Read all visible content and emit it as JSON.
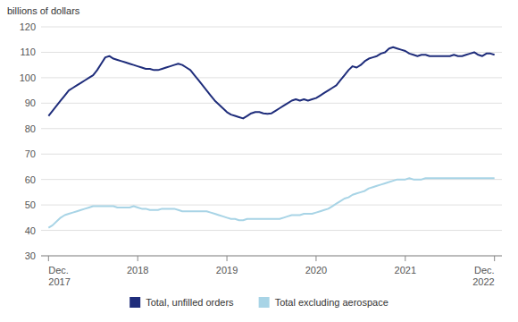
{
  "chart_data": {
    "type": "line",
    "ylabel": "billions of dollars",
    "categories": [
      "Dec.\n2017",
      null,
      null,
      null,
      null,
      null,
      null,
      null,
      null,
      null,
      null,
      null,
      null,
      null,
      null,
      null,
      null,
      null,
      null,
      null,
      null,
      null,
      "2018",
      null,
      null,
      null,
      null,
      null,
      null,
      null,
      null,
      null,
      null,
      null,
      null,
      null,
      null,
      null,
      null,
      null,
      null,
      null,
      null,
      null,
      "2019",
      null,
      null,
      null,
      null,
      null,
      null,
      null,
      null,
      null,
      null,
      null,
      null,
      null,
      null,
      null,
      null,
      null,
      null,
      null,
      null,
      null,
      "2020",
      null,
      null,
      null,
      null,
      null,
      null,
      null,
      null,
      null,
      null,
      null,
      null,
      null,
      null,
      null,
      null,
      null,
      null,
      null,
      null,
      null,
      "2021",
      null,
      null,
      null,
      null,
      null,
      null,
      null,
      null,
      null,
      null,
      null,
      null,
      null,
      null,
      null,
      null,
      null,
      null,
      null,
      null,
      null,
      "Dec.\n2022"
    ],
    "series": [
      {
        "name": "Total, unfilled orders",
        "color": "#1f2d7b",
        "values": [
          85.0,
          87.0,
          89.0,
          91.0,
          93.0,
          95.0,
          96.0,
          97.0,
          98.0,
          99.0,
          100.0,
          101.0,
          103.0,
          105.5,
          108.0,
          108.5,
          107.5,
          107.0,
          106.5,
          106.0,
          105.5,
          105.0,
          104.5,
          104.0,
          103.5,
          103.5,
          103.0,
          103.0,
          103.5,
          104.0,
          104.5,
          105.0,
          105.5,
          105.0,
          104.0,
          103.0,
          101.0,
          99.0,
          97.0,
          95.0,
          93.0,
          91.0,
          89.5,
          88.0,
          86.5,
          85.5,
          85.0,
          84.5,
          84.0,
          85.0,
          86.0,
          86.5,
          86.5,
          86.0,
          85.8,
          86.0,
          87.0,
          88.0,
          89.0,
          90.0,
          91.0,
          91.5,
          91.0,
          91.5,
          91.0,
          91.5,
          92.0,
          93.0,
          94.0,
          95.0,
          96.0,
          97.0,
          99.0,
          101.0,
          103.0,
          104.5,
          104.0,
          105.0,
          106.5,
          107.5,
          108.0,
          108.5,
          109.5,
          110.0,
          111.5,
          112.0,
          111.5,
          111.0,
          110.5,
          109.5,
          109.0,
          108.5,
          109.0,
          109.0,
          108.5,
          108.5,
          108.5,
          108.5,
          108.5,
          108.5,
          109.0,
          108.5,
          108.5,
          109.0,
          109.5,
          110.0,
          109.0,
          108.5,
          109.5,
          109.5,
          109.0
        ]
      },
      {
        "name": "Total excluding aerospace",
        "color": "#a8d4e6",
        "values": [
          41.0,
          42.0,
          43.5,
          45.0,
          46.0,
          46.5,
          47.0,
          47.5,
          48.0,
          48.5,
          49.0,
          49.5,
          49.5,
          49.5,
          49.5,
          49.5,
          49.5,
          49.0,
          49.0,
          49.0,
          49.0,
          49.5,
          49.0,
          48.5,
          48.5,
          48.0,
          48.0,
          48.0,
          48.5,
          48.5,
          48.5,
          48.5,
          48.0,
          47.5,
          47.5,
          47.5,
          47.5,
          47.5,
          47.5,
          47.5,
          47.0,
          46.5,
          46.0,
          45.5,
          45.0,
          44.5,
          44.5,
          44.0,
          44.0,
          44.5,
          44.5,
          44.5,
          44.5,
          44.5,
          44.5,
          44.5,
          44.5,
          44.5,
          45.0,
          45.5,
          46.0,
          46.0,
          46.0,
          46.5,
          46.5,
          46.5,
          47.0,
          47.5,
          48.0,
          48.5,
          49.5,
          50.5,
          51.5,
          52.5,
          53.0,
          54.0,
          54.5,
          55.0,
          55.5,
          56.5,
          57.0,
          57.5,
          58.0,
          58.5,
          59.0,
          59.5,
          60.0,
          60.0,
          60.0,
          60.5,
          60.0,
          60.0,
          60.0,
          60.5,
          60.5,
          60.5,
          60.5,
          60.5,
          60.5,
          60.5,
          60.5,
          60.5,
          60.5,
          60.5,
          60.5,
          60.5,
          60.5,
          60.5,
          60.5,
          60.5,
          60.5
        ]
      }
    ],
    "ylim": [
      30,
      120
    ],
    "yticks": [
      30,
      40,
      50,
      60,
      70,
      80,
      90,
      100,
      110,
      120
    ],
    "grid": true,
    "legend": "bottom"
  }
}
